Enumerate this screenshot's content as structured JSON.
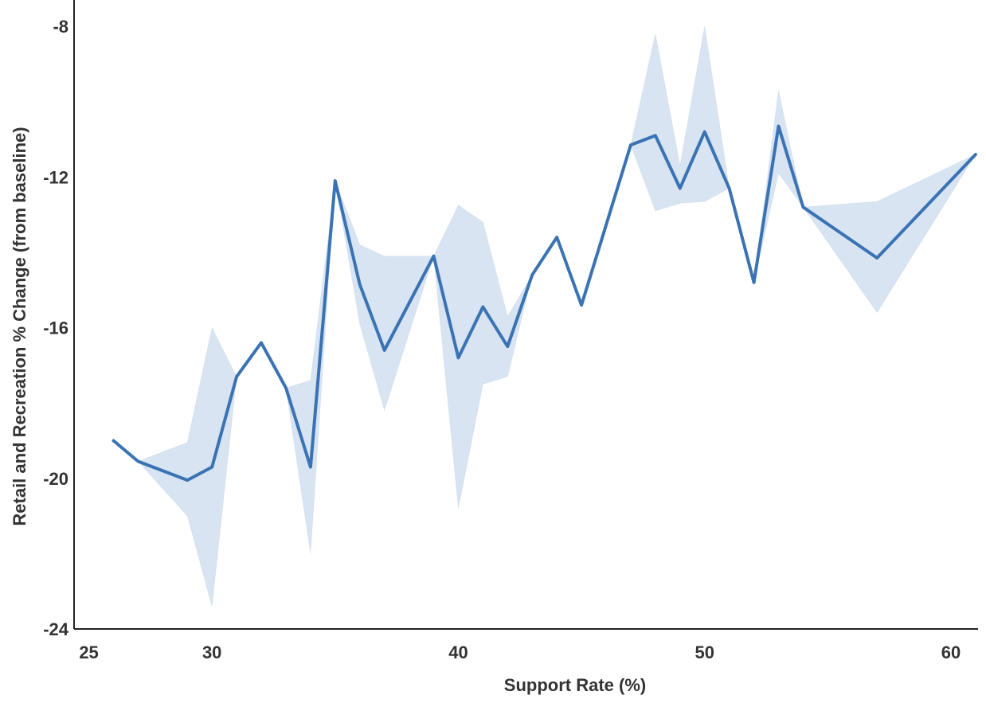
{
  "chart_data": {
    "type": "line",
    "xlabel": "Support Rate (%)",
    "ylabel": "Retail and Recreation % Change (from baseline)",
    "xlim": [
      24.4,
      61.1
    ],
    "ylim": [
      -24,
      -7.3
    ],
    "xticks": [
      25,
      30,
      40,
      50,
      60
    ],
    "yticks": [
      -24,
      -20,
      -16,
      -12,
      -8
    ],
    "grid": false,
    "series": [
      {
        "color": "#3a73b4",
        "x": [
          26,
          27,
          29,
          30,
          31,
          32,
          33,
          34,
          35,
          36,
          37,
          39,
          40,
          41,
          42,
          43,
          44,
          45,
          47,
          48,
          49,
          50,
          51,
          52,
          53,
          54,
          57,
          61
        ],
        "y": [
          -19.0,
          -19.55,
          -20.05,
          -19.7,
          -17.3,
          -16.4,
          -17.6,
          -19.7,
          -12.1,
          -14.85,
          -16.6,
          -14.1,
          -16.8,
          -15.45,
          -16.5,
          -14.6,
          -13.6,
          -15.4,
          -11.15,
          -10.9,
          -12.3,
          -10.8,
          -12.3,
          -14.8,
          -10.65,
          -12.8,
          -14.15,
          -11.4
        ]
      }
    ],
    "confidence_band": {
      "color": "#3b78b8",
      "x": [
        26,
        27,
        29,
        30,
        31,
        32,
        33,
        34,
        35,
        36,
        37,
        39,
        40,
        41,
        42,
        43,
        44,
        45,
        47,
        48,
        49,
        50,
        51,
        52,
        53,
        54,
        57,
        61
      ],
      "lower": [
        -19.0,
        -19.55,
        -21.0,
        -23.4,
        -17.3,
        -16.4,
        -17.6,
        -22.0,
        -12.1,
        -15.9,
        -18.2,
        -14.1,
        -20.8,
        -17.5,
        -17.3,
        -14.6,
        -13.6,
        -15.4,
        -11.15,
        -12.9,
        -12.7,
        -12.65,
        -12.3,
        -14.8,
        -11.9,
        -12.8,
        -15.6,
        -11.4
      ],
      "upper": [
        -19.0,
        -19.55,
        -19.05,
        -16.0,
        -17.3,
        -16.4,
        -17.6,
        -17.4,
        -12.1,
        -13.8,
        -14.1,
        -14.1,
        -12.75,
        -13.2,
        -15.7,
        -14.6,
        -13.6,
        -15.4,
        -11.15,
        -8.2,
        -11.7,
        -8.0,
        -12.3,
        -14.8,
        -9.7,
        -12.8,
        -12.65,
        -11.4
      ]
    }
  }
}
